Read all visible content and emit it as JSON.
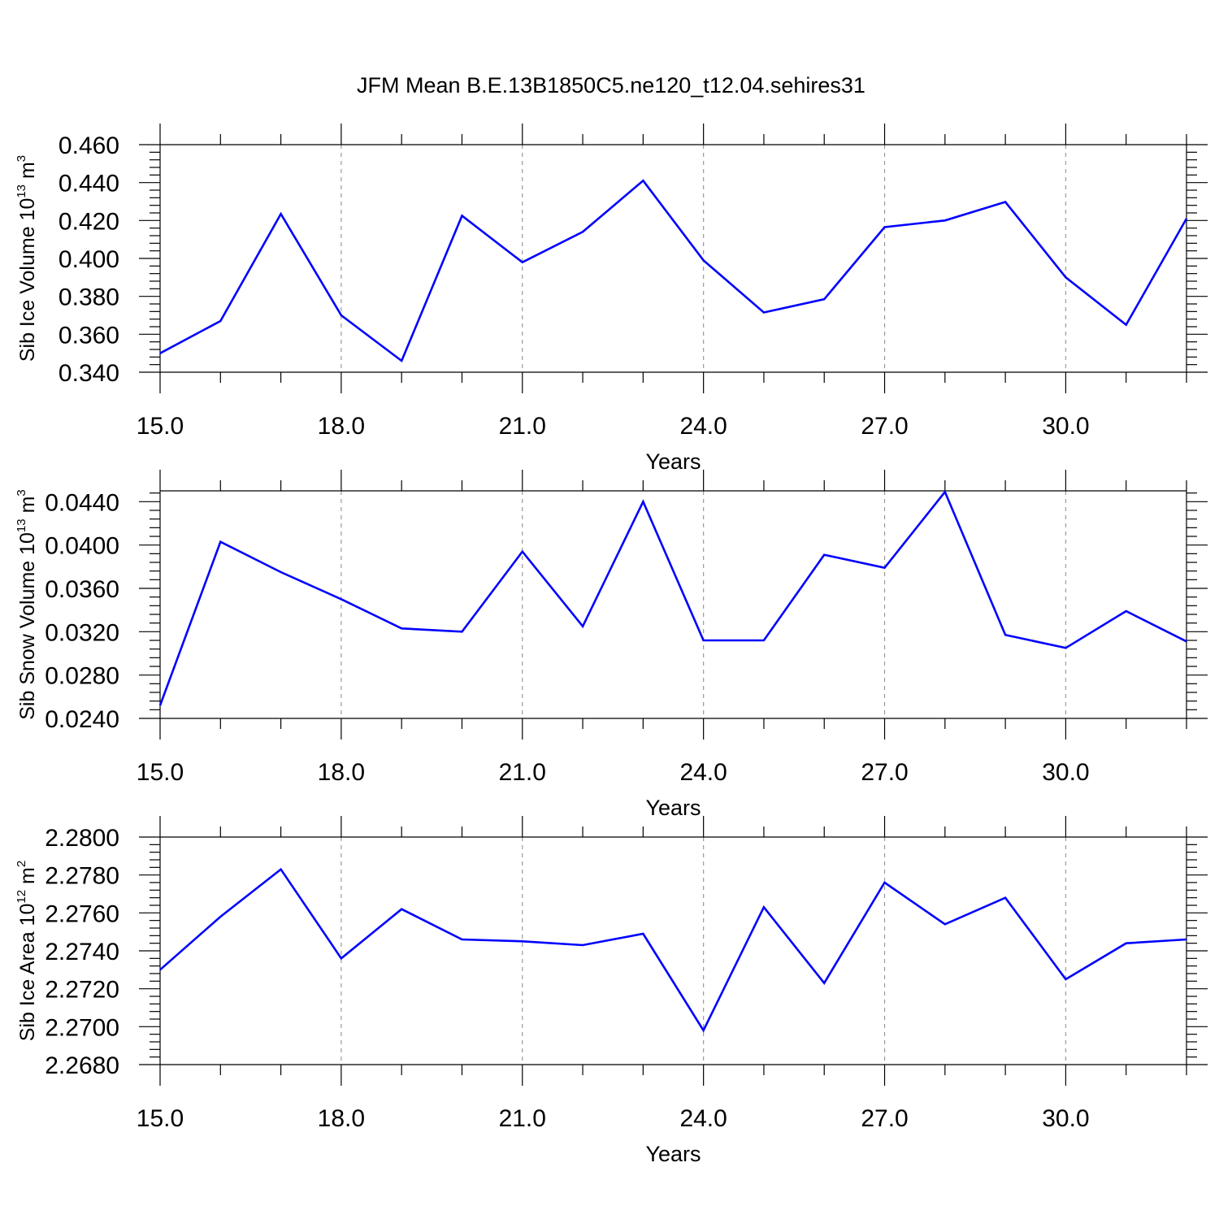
{
  "title": "JFM Mean B.E.13B1850C5.ne120_t12.04.sehires31",
  "colors": {
    "series": "#0000ff",
    "axes": "#000000",
    "grid": "#999999"
  },
  "chart_data": [
    {
      "type": "line",
      "ylabel": {
        "text": "Sib Ice Volume 10",
        "sup": "13",
        "unit": " m",
        "unit_sup": "3"
      },
      "xlabel": "Years",
      "xlim": [
        15,
        32
      ],
      "ylim": [
        0.34,
        0.46
      ],
      "xticks": [
        "15.0",
        "18.0",
        "21.0",
        "24.0",
        "27.0",
        "30.0"
      ],
      "xtick_values": [
        15,
        18,
        21,
        24,
        27,
        30
      ],
      "yticks": [
        "0.340",
        "0.360",
        "0.380",
        "0.400",
        "0.420",
        "0.440",
        "0.460"
      ],
      "ytick_values": [
        0.34,
        0.36,
        0.38,
        0.4,
        0.42,
        0.44,
        0.46
      ],
      "grid": "vertical-dashed",
      "x": [
        15,
        16,
        17,
        18,
        19,
        20,
        21,
        22,
        23,
        24,
        25,
        26,
        27,
        28,
        29,
        30,
        31,
        32
      ],
      "values": [
        0.35,
        0.367,
        0.4235,
        0.37,
        0.346,
        0.4225,
        0.398,
        0.414,
        0.441,
        0.399,
        0.3715,
        0.3785,
        0.4165,
        0.42,
        0.4298,
        0.39,
        0.365,
        0.421
      ]
    },
    {
      "type": "line",
      "ylabel": {
        "text": "Sib Snow Volume 10",
        "sup": "13",
        "unit": " m",
        "unit_sup": "3"
      },
      "xlabel": "Years",
      "xlim": [
        15,
        32
      ],
      "ylim": [
        0.024,
        0.045
      ],
      "xticks": [
        "15.0",
        "18.0",
        "21.0",
        "24.0",
        "27.0",
        "30.0"
      ],
      "xtick_values": [
        15,
        18,
        21,
        24,
        27,
        30
      ],
      "yticks": [
        "0.0240",
        "0.0280",
        "0.0320",
        "0.0360",
        "0.0400",
        "0.0440"
      ],
      "ytick_values": [
        0.024,
        0.028,
        0.032,
        0.036,
        0.04,
        0.044
      ],
      "grid": "vertical-dashed",
      "x": [
        15,
        16,
        17,
        18,
        19,
        20,
        21,
        22,
        23,
        24,
        25,
        26,
        27,
        28,
        29,
        30,
        31,
        32
      ],
      "values": [
        0.0252,
        0.0403,
        0.0375,
        0.035,
        0.0323,
        0.032,
        0.0394,
        0.0325,
        0.044,
        0.0312,
        0.0312,
        0.0391,
        0.0379,
        0.0449,
        0.0317,
        0.0305,
        0.0339,
        0.0311
      ]
    },
    {
      "type": "line",
      "ylabel": {
        "text": "Sib Ice Area 10",
        "sup": "12",
        "unit": " m",
        "unit_sup": "2"
      },
      "xlabel": "Years",
      "xlim": [
        15,
        32
      ],
      "ylim": [
        2.268,
        2.28
      ],
      "xticks": [
        "15.0",
        "18.0",
        "21.0",
        "24.0",
        "27.0",
        "30.0"
      ],
      "xtick_values": [
        15,
        18,
        21,
        24,
        27,
        30
      ],
      "yticks": [
        "2.2680",
        "2.2700",
        "2.2720",
        "2.2740",
        "2.2760",
        "2.2780",
        "2.2800"
      ],
      "ytick_values": [
        2.268,
        2.27,
        2.272,
        2.274,
        2.276,
        2.278,
        2.28
      ],
      "grid": "vertical-dashed",
      "x": [
        15,
        16,
        17,
        18,
        19,
        20,
        21,
        22,
        23,
        24,
        25,
        26,
        27,
        28,
        29,
        30,
        31,
        32
      ],
      "values": [
        2.273,
        2.2758,
        2.2783,
        2.2736,
        2.2762,
        2.2746,
        2.2745,
        2.2743,
        2.2749,
        2.2698,
        2.2763,
        2.2723,
        2.2776,
        2.2754,
        2.2768,
        2.2725,
        2.2744,
        2.2746
      ]
    }
  ]
}
